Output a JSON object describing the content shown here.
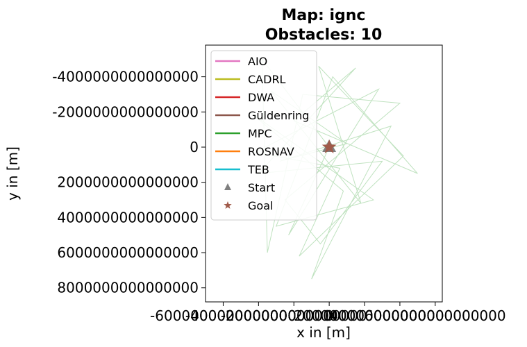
{
  "chart_data": {
    "type": "line",
    "title_line1": "Map: ignc",
    "title_line2": "Obstacles: 10",
    "xlabel": "x in [m]",
    "ylabel": "y in [m]",
    "y_inverted": true,
    "xlim": [
      -7000000000000000,
      6400000000000000
    ],
    "ylim": [
      -5800000000000000,
      8800000000000000
    ],
    "x_ticks": [
      {
        "value": -6000000000000000,
        "label": "-6000000000000000"
      },
      {
        "value": -4000000000000000,
        "label": "-4000000000000000"
      },
      {
        "value": -2000000000000000,
        "label": "-2000000000000000"
      },
      {
        "value": 0,
        "label": "0"
      },
      {
        "value": 2000000000000000,
        "label": "2000000000000000"
      },
      {
        "value": 4000000000000000,
        "label": "4000000000000000"
      },
      {
        "value": 6000000000000000,
        "label": "6000000000000000"
      }
    ],
    "y_ticks": [
      {
        "value": -4000000000000000,
        "label": "-4000000000000000"
      },
      {
        "value": -2000000000000000,
        "label": "-2000000000000000"
      },
      {
        "value": 0,
        "label": "0"
      },
      {
        "value": 2000000000000000,
        "label": "2000000000000000"
      },
      {
        "value": 4000000000000000,
        "label": "4000000000000000"
      },
      {
        "value": 6000000000000000,
        "label": "6000000000000000"
      },
      {
        "value": 8000000000000000,
        "label": "8000000000000000"
      }
    ],
    "legend_position": "upper-left",
    "series": [
      {
        "name": "AIO",
        "color": "#e377c2",
        "values": []
      },
      {
        "name": "CADRL",
        "color": "#bcbd22",
        "values": []
      },
      {
        "name": "DWA",
        "color": "#d62728",
        "values": []
      },
      {
        "name": "Güldenring",
        "color": "#8c564b",
        "values": []
      },
      {
        "name": "MPC",
        "color": "#2ca02c",
        "opacity": 0.3,
        "values": [
          [
            0,
            0
          ],
          [
            -3800000000000000,
            -5000000000000000
          ],
          [
            -3500000000000000,
            6000000000000000
          ],
          [
            -1500000000000000,
            -3000000000000000
          ],
          [
            4000000000000000,
            -2500000000000000
          ],
          [
            -2500000000000000,
            3000000000000000
          ],
          [
            -500000000000000,
            5500000000000000
          ],
          [
            3000000000000000,
            800000000000000
          ],
          [
            -4000000000000000,
            1500000000000000
          ],
          [
            1500000000000000,
            -4500000000000000
          ],
          [
            -2000000000000000,
            -1500000000000000
          ],
          [
            5000000000000000,
            1500000000000000
          ],
          [
            200000000000000,
            -4000000000000000
          ],
          [
            -3000000000000000,
            4500000000000000
          ],
          [
            2500000000000000,
            3000000000000000
          ],
          [
            -4500000000000000,
            -2000000000000000
          ],
          [
            800000000000000,
            2500000000000000
          ],
          [
            -1000000000000000,
            7500000000000000
          ],
          [
            3500000000000000,
            -1200000000000000
          ],
          [
            -2800000000000000,
            800000000000000
          ],
          [
            1000000000000000,
            -200000000000000
          ],
          [
            -3300000000000000,
            -3200000000000000
          ],
          [
            1800000000000000,
            3200000000000000
          ],
          [
            -600000000000000,
            -4600000000000000
          ],
          [
            4200000000000000,
            500000000000000
          ],
          [
            -1700000000000000,
            6200000000000000
          ],
          [
            600000000000000,
            1200000000000000
          ],
          [
            -4200000000000000,
            300000000000000
          ],
          [
            2800000000000000,
            -3300000000000000
          ],
          [
            -2300000000000000,
            5000000000000000
          ],
          [
            0,
            0
          ]
        ]
      },
      {
        "name": "ROSNAV",
        "color": "#ff7f0e",
        "values": []
      },
      {
        "name": "TEB",
        "color": "#17becf",
        "values": []
      }
    ],
    "start": {
      "label": "Start",
      "color": "#7f7f7f",
      "x": 0,
      "y": 0
    },
    "goal": {
      "label": "Goal",
      "color": "#a05a4a",
      "x": 0,
      "y": 0
    }
  }
}
